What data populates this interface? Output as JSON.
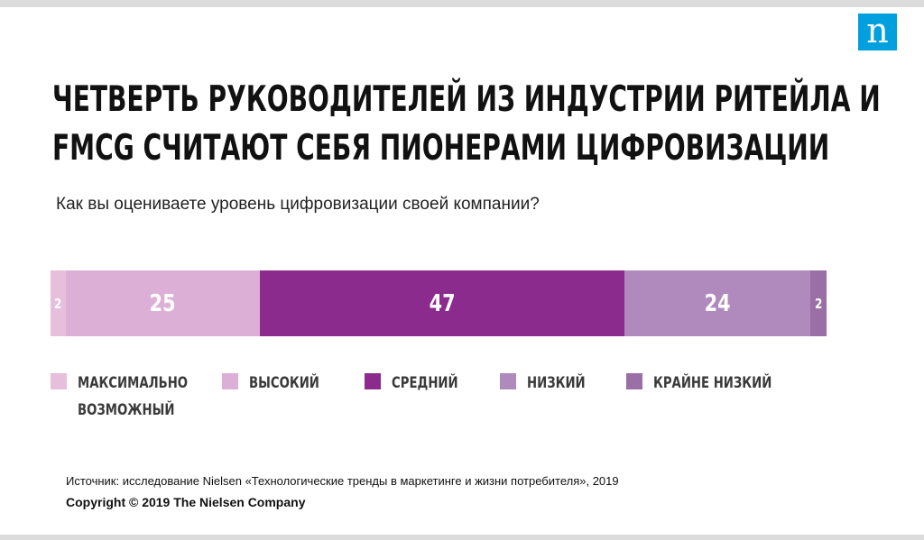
{
  "brand": {
    "logo_letter": "n",
    "color": "#00a0df"
  },
  "title_lines": [
    "Четверть руководителей из индустрии ритейла и",
    "FMCG считают себя пионерами цифровизации"
  ],
  "subtitle": "Как вы оцениваете уровень цифровизации своей компании?",
  "chart_data": {
    "type": "bar",
    "orientation": "horizontal-stacked-100",
    "categories": [
      "Максимально возможный",
      "Высокий",
      "Средний",
      "Низкий",
      "Крайне низкий"
    ],
    "values": [
      2,
      25,
      47,
      24,
      2
    ],
    "colors": [
      "#e6bfdc",
      "#dcb0d6",
      "#8c2b8e",
      "#b08abd",
      "#9a6fa5"
    ],
    "legend_position": "bottom",
    "title": "",
    "xlabel": "",
    "ylabel": ""
  },
  "legend": [
    {
      "label": "Максимально",
      "label2": "возможный"
    },
    {
      "label": "Высокий"
    },
    {
      "label": "Средний"
    },
    {
      "label": "Низкий"
    },
    {
      "label": "Крайне низкий"
    }
  ],
  "source": "Источник: исследование Nielsen «Технологические тренды в маркетинге и жизни потребителя», 2019",
  "copyright": "Copyright © 2019 The Nielsen Company"
}
